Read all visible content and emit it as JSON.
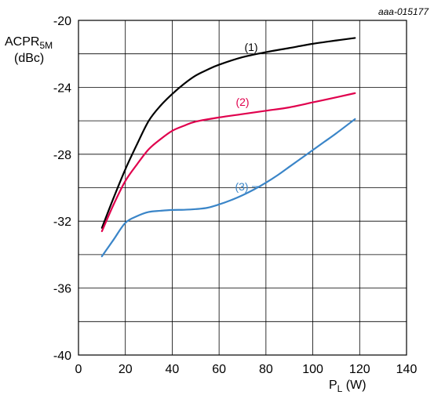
{
  "chart_data": {
    "type": "line",
    "reference": "aaa-015177",
    "ylabel_main": "ACPR",
    "ylabel_sub": "5M",
    "yunit": "(dBc)",
    "xlabel_main": "P",
    "xlabel_sub": "L",
    "xunit": " (W)",
    "xlim": [
      0,
      140
    ],
    "ylim": [
      -40,
      -20
    ],
    "xticks": [
      0,
      20,
      40,
      60,
      80,
      100,
      120,
      140
    ],
    "yticks": [
      -20,
      -24,
      -28,
      -32,
      -36,
      -40
    ],
    "xgrid": [
      0,
      20,
      40,
      60,
      80,
      100,
      120,
      140
    ],
    "ygrid": [
      -20,
      -22,
      -24,
      -26,
      -28,
      -30,
      -32,
      -34,
      -36,
      -38,
      -40
    ],
    "grid": true,
    "series": [
      {
        "name": "(1)",
        "color": "#000000",
        "x": [
          10,
          15,
          20,
          25,
          30,
          35,
          40,
          45,
          50,
          55,
          60,
          70,
          80,
          90,
          100,
          110,
          118
        ],
        "y": [
          -32.4,
          -30.6,
          -28.9,
          -27.4,
          -26.0,
          -25.1,
          -24.4,
          -23.8,
          -23.3,
          -22.95,
          -22.65,
          -22.2,
          -21.9,
          -21.65,
          -21.4,
          -21.2,
          -21.05
        ]
      },
      {
        "name": "(2)",
        "color": "#e0004d",
        "x": [
          10,
          15,
          20,
          25,
          30,
          35,
          40,
          45,
          50,
          60,
          70,
          80,
          90,
          100,
          110,
          118
        ],
        "y": [
          -32.6,
          -31.0,
          -29.6,
          -28.6,
          -27.7,
          -27.1,
          -26.6,
          -26.3,
          -26.05,
          -25.8,
          -25.6,
          -25.4,
          -25.2,
          -24.9,
          -24.6,
          -24.35
        ]
      },
      {
        "name": "(3)",
        "color": "#3a85c8",
        "x": [
          10,
          15,
          20,
          25,
          30,
          35,
          40,
          45,
          50,
          55,
          60,
          65,
          70,
          75,
          80,
          85,
          90,
          95,
          100,
          105,
          110,
          118
        ],
        "y": [
          -34.1,
          -33.1,
          -32.1,
          -31.7,
          -31.45,
          -31.38,
          -31.33,
          -31.32,
          -31.28,
          -31.2,
          -31.0,
          -30.75,
          -30.45,
          -30.1,
          -29.7,
          -29.25,
          -28.75,
          -28.25,
          -27.75,
          -27.25,
          -26.75,
          -25.9
        ]
      }
    ]
  }
}
